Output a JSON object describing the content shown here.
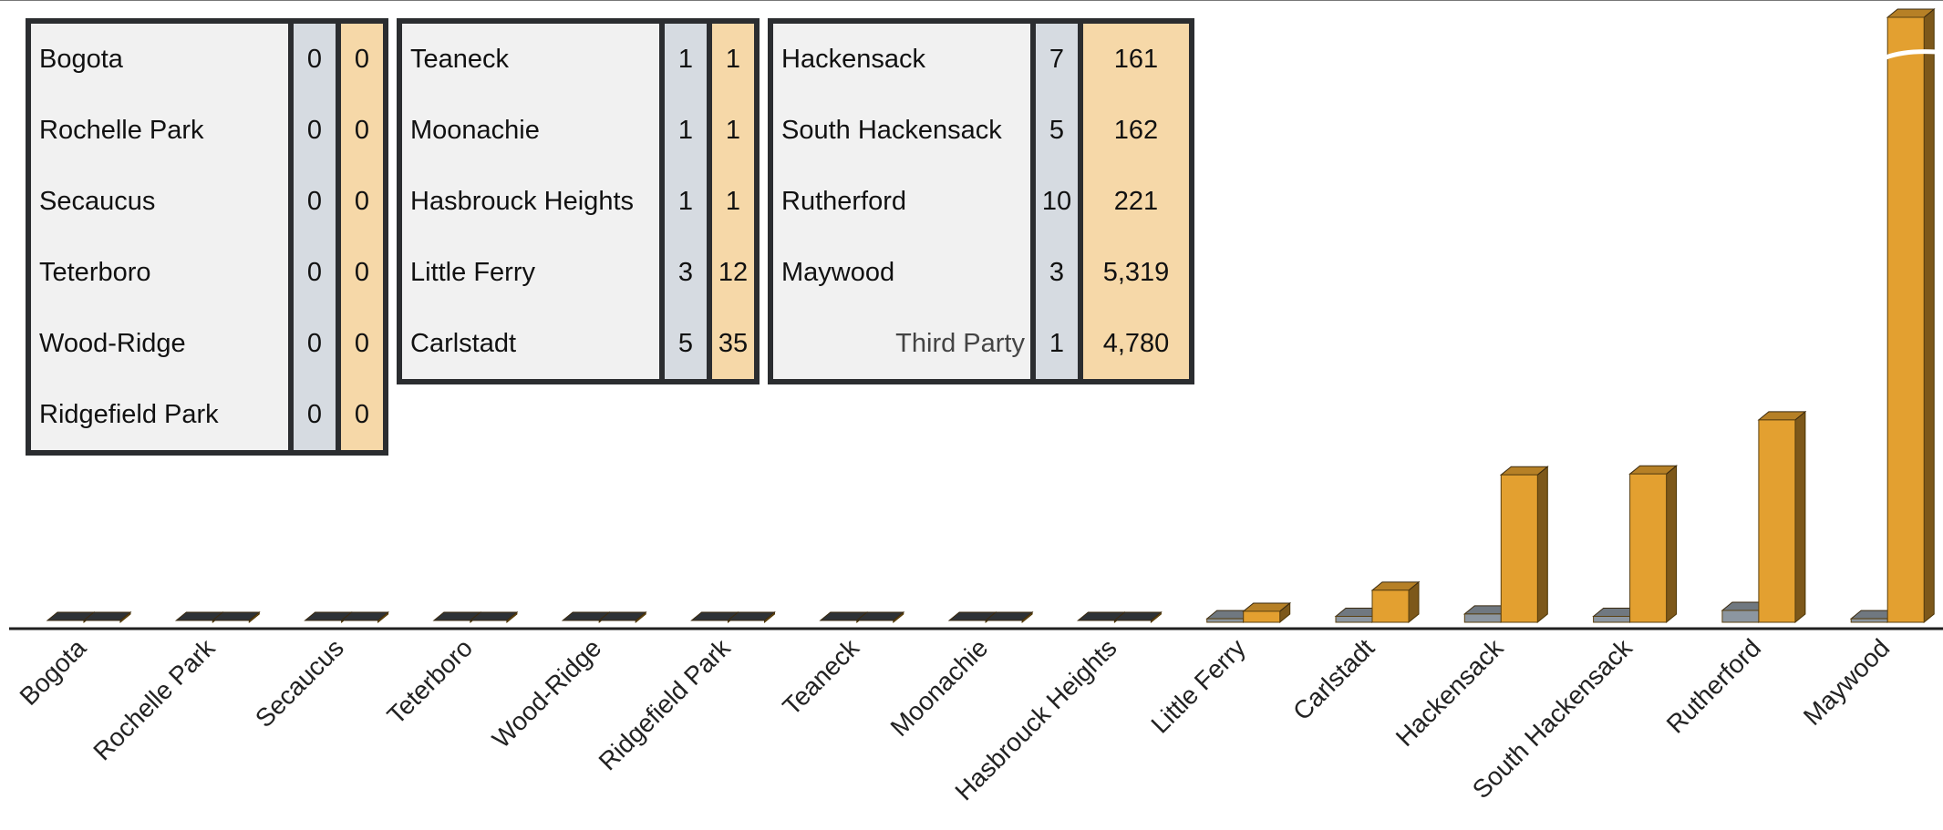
{
  "chart_data": {
    "type": "bar",
    "title": "",
    "xlabel": "",
    "ylabel": "",
    "grid": false,
    "categories": [
      "Bogota",
      "Rochelle Park",
      "Secaucus",
      "Teterboro",
      "Wood-Ridge",
      "Ridgefield Park",
      "Teaneck",
      "Moonachie",
      "Hasbrouck Heights",
      "Little Ferry",
      "Carlstadt",
      "Hackensack",
      "South Hackensack",
      "Rutherford",
      "Maywood"
    ],
    "series": [
      {
        "values": [
          0,
          0,
          0,
          0,
          0,
          0,
          1,
          1,
          1,
          3,
          5,
          7,
          5,
          10,
          3
        ],
        "color": "#8c96a0"
      },
      {
        "values": [
          0,
          0,
          0,
          0,
          0,
          0,
          1,
          1,
          1,
          12,
          35,
          161,
          162,
          221,
          5319
        ],
        "color": "#e3a030",
        "axis_break": true
      }
    ]
  },
  "table": {
    "groups": [
      {
        "rows": [
          {
            "name": "Bogota",
            "a": "0",
            "b": "0"
          },
          {
            "name": "Rochelle Park",
            "a": "0",
            "b": "0"
          },
          {
            "name": "Secaucus",
            "a": "0",
            "b": "0"
          },
          {
            "name": "Teterboro",
            "a": "0",
            "b": "0"
          },
          {
            "name": "Wood-Ridge",
            "a": "0",
            "b": "0"
          },
          {
            "name": "Ridgefield Park",
            "a": "0",
            "b": "0"
          }
        ]
      },
      {
        "rows": [
          {
            "name": "Teaneck",
            "a": "1",
            "b": "1"
          },
          {
            "name": "Moonachie",
            "a": "1",
            "b": "1"
          },
          {
            "name": "Hasbrouck Heights",
            "a": "1",
            "b": "1"
          },
          {
            "name": "Little Ferry",
            "a": "3",
            "b": "12"
          },
          {
            "name": "Carlstadt",
            "a": "5",
            "b": "35"
          }
        ]
      },
      {
        "rows": [
          {
            "name": "Hackensack",
            "a": "7",
            "b": "161"
          },
          {
            "name": "South Hackensack",
            "a": "5",
            "b": "162"
          },
          {
            "name": "Rutherford",
            "a": "10",
            "b": "221"
          },
          {
            "name": "Maywood",
            "a": "3",
            "b": "5,319"
          },
          {
            "name": "Third Party",
            "a": "1",
            "b": "4,780"
          }
        ]
      }
    ]
  }
}
